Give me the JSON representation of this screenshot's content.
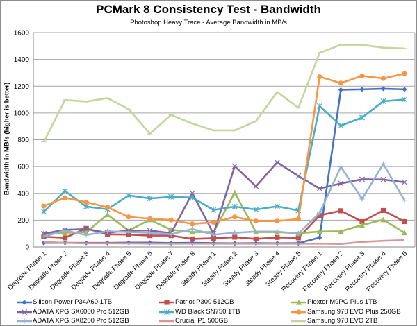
{
  "chart_data": {
    "type": "line",
    "title": "PCMark 8 Consistency Test - Bandwidth",
    "subtitle": "Photoshop Heavy Trace - Average Bandwidth in MB/s",
    "xlabel": "",
    "ylabel": "Bandwidth in MB/s (higher is better)",
    "ylim": [
      0,
      1600
    ],
    "yticks": [
      0,
      200,
      400,
      600,
      800,
      1000,
      1200,
      1400,
      1600
    ],
    "grid": true,
    "legend_position": "bottom",
    "categories": [
      "Degrade Phase 1",
      "Degrade Phase 2",
      "Degrade Phase 3",
      "Degrade Phase 4",
      "Degrade Phase 5",
      "Degrade Phase 6",
      "Degrade Phase 7",
      "Degrade Phase 8",
      "Steady Phase 1",
      "Steady Phase 2",
      "Steady Phase 3",
      "Steady Phase 4",
      "Steady Phase 5",
      "Recovery Phase 1",
      "Recovery Phase 2",
      "Recovery Phase 3",
      "Recovery Phase 4",
      "Recovery Phase 5"
    ],
    "series": [
      {
        "name": "Silicon Power P34A60 1TB",
        "color": "#4472c4",
        "marker": "diamond",
        "values": [
          30,
          31,
          30,
          30,
          32,
          32,
          29,
          31,
          28,
          27,
          28,
          27,
          28,
          70,
          1173,
          1176,
          1181,
          1176
        ]
      },
      {
        "name": "Patriot P300 512GB",
        "color": "#c0504d",
        "marker": "square",
        "values": [
          77,
          68,
          138,
          94,
          92,
          85,
          85,
          60,
          65,
          73,
          60,
          71,
          68,
          236,
          270,
          189,
          272,
          189
        ]
      },
      {
        "name": "Plextor M9PG Plus 1TB",
        "color": "#9bbb59",
        "marker": "triangle",
        "values": [
          104,
          106,
          111,
          241,
          122,
          203,
          128,
          111,
          111,
          405,
          111,
          111,
          102,
          115,
          117,
          163,
          203,
          106
        ]
      },
      {
        "name": "ADATA XPG SX6000 Pro 512GB",
        "color": "#8064a2",
        "marker": "x",
        "values": [
          99,
          128,
          134,
          106,
          123,
          123,
          103,
          401,
          98,
          603,
          452,
          631,
          529,
          436,
          474,
          505,
          503,
          483
        ]
      },
      {
        "name": "WD Black SN750 1TB",
        "color": "#4bacc6",
        "marker": "star",
        "values": [
          263,
          418,
          301,
          281,
          384,
          362,
          374,
          369,
          276,
          301,
          279,
          303,
          272,
          1052,
          905,
          966,
          1087,
          1101
        ]
      },
      {
        "name": "Samsung 970 EVO Plus 250GB",
        "color": "#f79646",
        "marker": "circle",
        "values": [
          305,
          367,
          334,
          296,
          224,
          211,
          201,
          172,
          184,
          224,
          193,
          193,
          208,
          1271,
          1223,
          1277,
          1258,
          1294
        ]
      },
      {
        "name": "ADATA XPG SX8200 Pro 512GB",
        "color": "#95b3d7",
        "marker": "plus",
        "values": [
          77,
          123,
          89,
          117,
          111,
          106,
          94,
          134,
          92,
          106,
          115,
          115,
          99,
          254,
          598,
          358,
          620,
          348
        ]
      },
      {
        "name": "Crucial P1 500GB",
        "color": "#d99694",
        "marker": "none",
        "values": [
          37,
          30,
          27,
          27,
          26,
          25,
          24,
          24,
          24,
          24,
          24,
          24,
          24,
          25,
          22,
          37,
          46,
          51
        ]
      },
      {
        "name": "Samsung 970 EVO 2TB",
        "color": "#c3d69b",
        "marker": "dash",
        "values": [
          784,
          1097,
          1085,
          1111,
          1029,
          845,
          986,
          921,
          870,
          870,
          939,
          1157,
          1039,
          1449,
          1509,
          1509,
          1487,
          1482
        ]
      }
    ]
  }
}
